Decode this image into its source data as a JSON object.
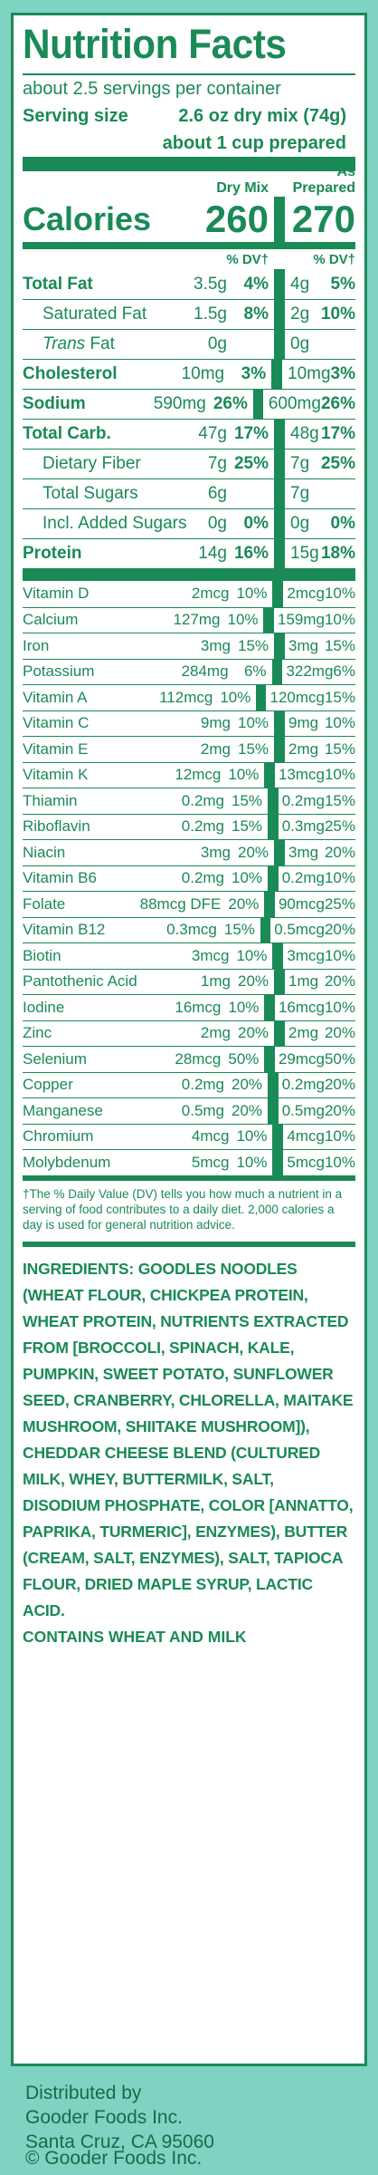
{
  "title": "Nutrition Facts",
  "servings_per_container": "about 2.5 servings per container",
  "serving_size_label": "Serving size",
  "serving_size_value": "2.6 oz dry mix (74g)",
  "serving_size_prepared": "about 1 cup prepared",
  "columns": {
    "dry": "Dry Mix",
    "prepared": "As Prepared"
  },
  "calories": {
    "label": "Calories",
    "dry": "260",
    "prepared": "270"
  },
  "dv_header": "% DV†",
  "nutrients": [
    {
      "name": "Total Fat",
      "style": "bold",
      "dry_amt": "3.5g",
      "dry_dv": "4%",
      "prep_amt": "4g",
      "prep_dv": "5%"
    },
    {
      "name": "Saturated Fat",
      "style": "indent",
      "dry_amt": "1.5g",
      "dry_dv": "8%",
      "prep_amt": "2g",
      "prep_dv": "10%"
    },
    {
      "name": "Fat",
      "prefix": "Trans",
      "style": "indent-trans",
      "dry_amt": "0g",
      "dry_dv": "",
      "prep_amt": "0g",
      "prep_dv": ""
    },
    {
      "name": "Cholesterol",
      "style": "bold",
      "dry_amt": "10mg",
      "dry_dv": "3%",
      "prep_amt": "10mg",
      "prep_dv": "3%"
    },
    {
      "name": "Sodium",
      "style": "bold",
      "dry_amt": "590mg",
      "dry_dv": "26%",
      "prep_amt": "600mg",
      "prep_dv": "26%"
    },
    {
      "name": "Total Carb.",
      "style": "bold",
      "dry_amt": "47g",
      "dry_dv": "17%",
      "prep_amt": "48g",
      "prep_dv": "17%"
    },
    {
      "name": "Dietary Fiber",
      "style": "indent",
      "dry_amt": "7g",
      "dry_dv": "25%",
      "prep_amt": "7g",
      "prep_dv": "25%"
    },
    {
      "name": "Total Sugars",
      "style": "indent",
      "dry_amt": "6g",
      "dry_dv": "",
      "prep_amt": "7g",
      "prep_dv": ""
    },
    {
      "name": "Incl. Added Sugars",
      "style": "indent2",
      "dry_amt": "0g",
      "dry_dv": "0%",
      "prep_amt": "0g",
      "prep_dv": "0%"
    },
    {
      "name": "Protein",
      "style": "bold",
      "dry_amt": "14g",
      "dry_dv": "16%",
      "prep_amt": "15g",
      "prep_dv": "18%"
    }
  ],
  "vitamins": [
    {
      "name": "Vitamin D",
      "dry_amt": "2mcg",
      "dry_dv": "10%",
      "prep_amt": "2mcg",
      "prep_dv": "10%"
    },
    {
      "name": "Calcium",
      "dry_amt": "127mg",
      "dry_dv": "10%",
      "prep_amt": "159mg",
      "prep_dv": "10%"
    },
    {
      "name": "Iron",
      "dry_amt": "3mg",
      "dry_dv": "15%",
      "prep_amt": "3mg",
      "prep_dv": "15%"
    },
    {
      "name": "Potassium",
      "dry_amt": "284mg",
      "dry_dv": "6%",
      "prep_amt": "322mg",
      "prep_dv": "6%"
    },
    {
      "name": "Vitamin A",
      "dry_amt": "112mcg",
      "dry_dv": "10%",
      "prep_amt": "120mcg",
      "prep_dv": "15%"
    },
    {
      "name": "Vitamin C",
      "dry_amt": "9mg",
      "dry_dv": "10%",
      "prep_amt": "9mg",
      "prep_dv": "10%"
    },
    {
      "name": "Vitamin E",
      "dry_amt": "2mg",
      "dry_dv": "15%",
      "prep_amt": "2mg",
      "prep_dv": "15%"
    },
    {
      "name": "Vitamin K",
      "dry_amt": "12mcg",
      "dry_dv": "10%",
      "prep_amt": "13mcg",
      "prep_dv": "10%"
    },
    {
      "name": "Thiamin",
      "dry_amt": "0.2mg",
      "dry_dv": "15%",
      "prep_amt": "0.2mg",
      "prep_dv": "15%"
    },
    {
      "name": "Riboflavin",
      "dry_amt": "0.2mg",
      "dry_dv": "15%",
      "prep_amt": "0.3mg",
      "prep_dv": "25%"
    },
    {
      "name": "Niacin",
      "dry_amt": "3mg",
      "dry_dv": "20%",
      "prep_amt": "3mg",
      "prep_dv": "20%"
    },
    {
      "name": "Vitamin B6",
      "dry_amt": "0.2mg",
      "dry_dv": "10%",
      "prep_amt": "0.2mg",
      "prep_dv": "10%"
    },
    {
      "name": "Folate",
      "dry_amt": "88mcg DFE",
      "dry_dv": "20%",
      "prep_amt": "90mcg",
      "prep_dv": "25%"
    },
    {
      "name": "Vitamin B12",
      "dry_amt": "0.3mcg",
      "dry_dv": "15%",
      "prep_amt": "0.5mcg",
      "prep_dv": "20%"
    },
    {
      "name": "Biotin",
      "dry_amt": "3mcg",
      "dry_dv": "10%",
      "prep_amt": "3mcg",
      "prep_dv": "10%"
    },
    {
      "name": "Pantothenic Acid",
      "dry_amt": "1mg",
      "dry_dv": "20%",
      "prep_amt": "1mg",
      "prep_dv": "20%"
    },
    {
      "name": "Iodine",
      "dry_amt": "16mcg",
      "dry_dv": "10%",
      "prep_amt": "16mcg",
      "prep_dv": "10%"
    },
    {
      "name": "Zinc",
      "dry_amt": "2mg",
      "dry_dv": "20%",
      "prep_amt": "2mg",
      "prep_dv": "20%"
    },
    {
      "name": "Selenium",
      "dry_amt": "28mcg",
      "dry_dv": "50%",
      "prep_amt": "29mcg",
      "prep_dv": "50%"
    },
    {
      "name": "Copper",
      "dry_amt": "0.2mg",
      "dry_dv": "20%",
      "prep_amt": "0.2mg",
      "prep_dv": "20%"
    },
    {
      "name": "Manganese",
      "dry_amt": "0.5mg",
      "dry_dv": "20%",
      "prep_amt": "0.5mg",
      "prep_dv": "20%"
    },
    {
      "name": "Chromium",
      "dry_amt": "4mcg",
      "dry_dv": "10%",
      "prep_amt": "4mcg",
      "prep_dv": "10%"
    },
    {
      "name": "Molybdenum",
      "dry_amt": "5mcg",
      "dry_dv": "10%",
      "prep_amt": "5mcg",
      "prep_dv": "10%"
    }
  ],
  "footnote": "†The % Daily Value (DV) tells you how much a nutrient in a serving of food contributes to a daily diet. 2,000 calories a day is used for general nutrition advice.",
  "ingredients_label": "INGREDIENTS:",
  "ingredients_text": "GOODLES NOODLES (WHEAT FLOUR, CHICKPEA PROTEIN, WHEAT PROTEIN, NUTRIENTS EXTRACTED FROM [BROCCOLI, SPINACH, KALE, PUMPKIN, SWEET POTATO, SUNFLOWER SEED, CRANBERRY, CHLORELLA, MAITAKE MUSHROOM, SHIITAKE MUSHROOM]), CHEDDAR CHEESE BLEND (CULTURED MILK, WHEY, BUTTERMILK, SALT, DISODIUM PHOSPHATE, COLOR [ANNATTO, PAPRIKA, TURMERIC], ENZYMES), BUTTER (CREAM, SALT, ENZYMES), SALT, TAPIOCA FLOUR, DRIED MAPLE SYRUP, LACTIC ACID.",
  "contains": "CONTAINS WHEAT AND MILK",
  "distributor": {
    "line1": "Distributed by",
    "line2": "Gooder Foods Inc.",
    "line3": "Santa Cruz, CA 95060"
  },
  "copyright": "© Gooder Foods Inc.",
  "colors": {
    "green": "#1a8a57",
    "background": "#7ed3c3",
    "panel": "#ffffff"
  }
}
